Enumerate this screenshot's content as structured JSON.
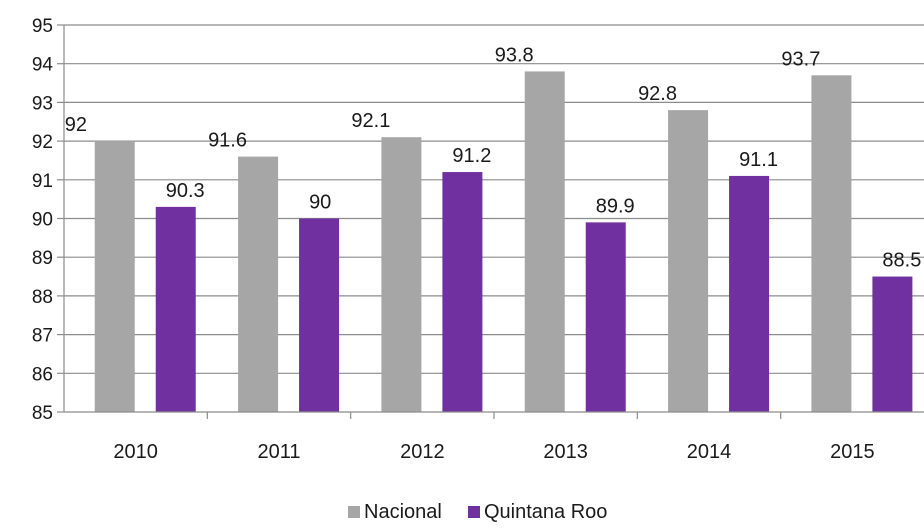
{
  "chart_data": {
    "type": "bar",
    "title": "",
    "xlabel": "",
    "ylabel": "",
    "ylim": [
      85,
      95
    ],
    "yticks": [
      85,
      86,
      87,
      88,
      89,
      90,
      91,
      92,
      93,
      94,
      95
    ],
    "grid": true,
    "legend_position": "bottom",
    "categories": [
      "2010",
      "2011",
      "2012",
      "2013",
      "2014",
      "2015"
    ],
    "series": [
      {
        "name": "Nacional",
        "color": "#a6a6a6",
        "values": [
          92,
          91.6,
          92.1,
          93.8,
          92.8,
          93.7
        ]
      },
      {
        "name": "Quintana Roo",
        "color": "#7030a0",
        "values": [
          90.3,
          90,
          91.2,
          89.9,
          91.1,
          88.5
        ]
      }
    ]
  }
}
